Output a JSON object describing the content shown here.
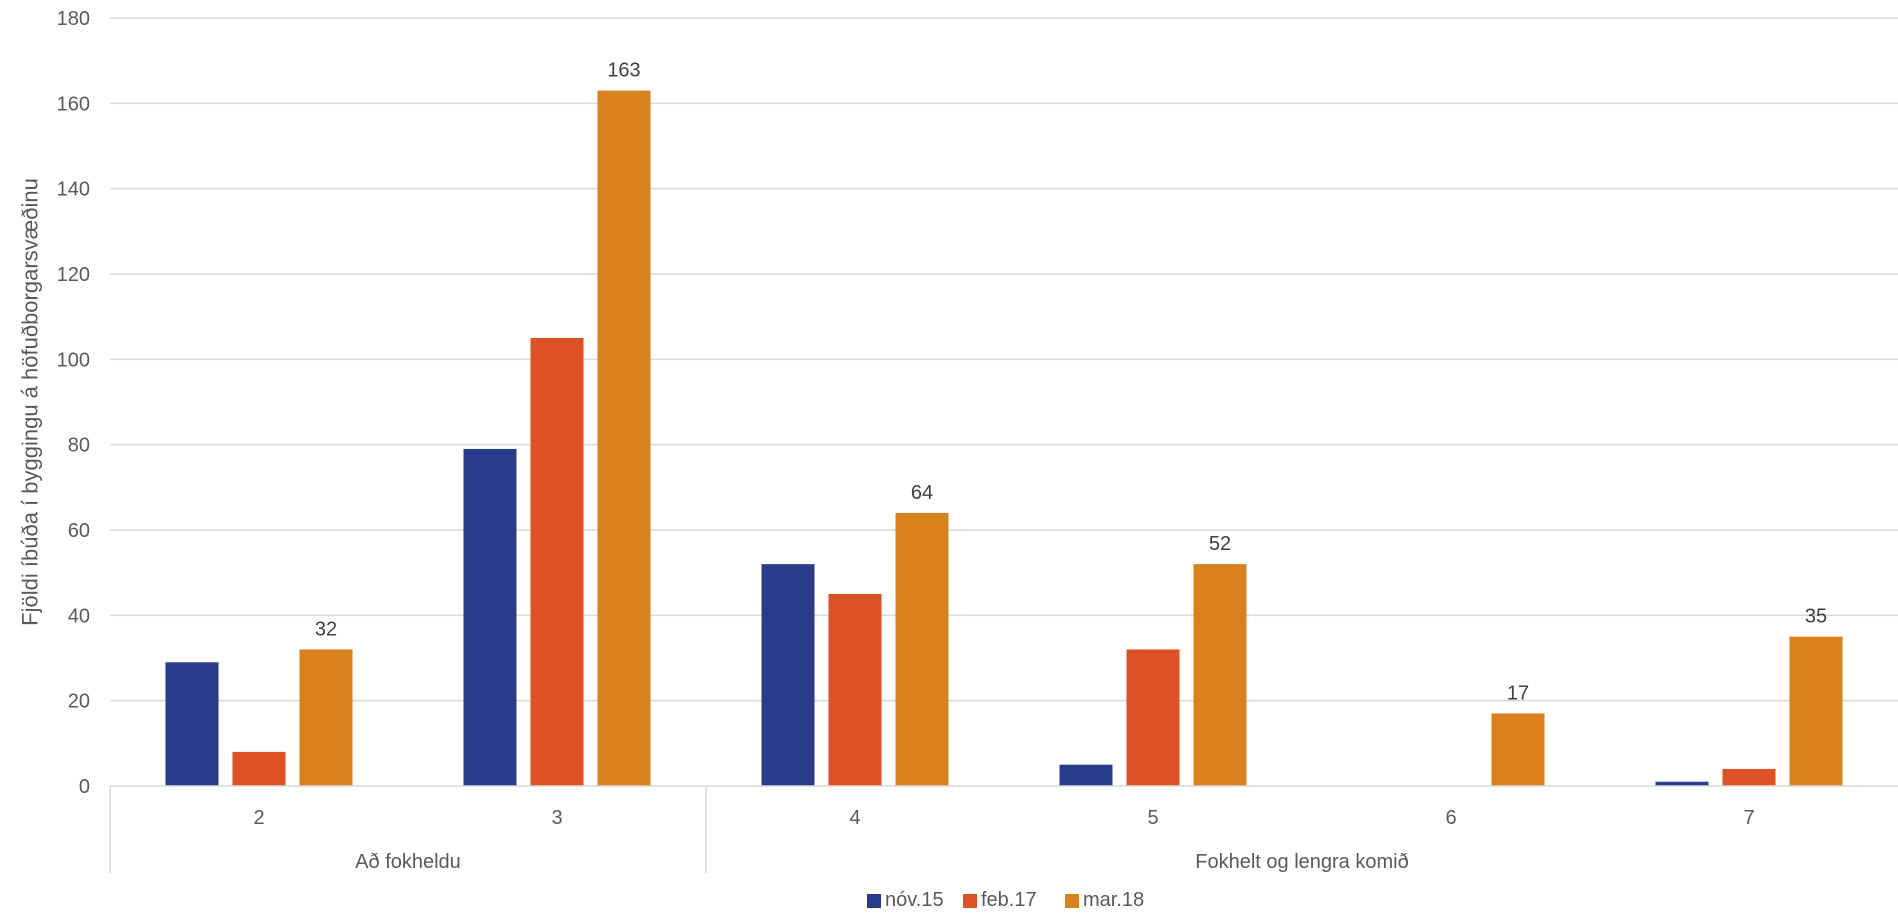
{
  "chart_data": {
    "type": "bar",
    "title": "",
    "ylabel": "Fjöldi íbúða í byggingu á höfuðborgarsvæðinu",
    "xlabel": "",
    "ylim": [
      0,
      180
    ],
    "yticks": [
      0,
      20,
      40,
      60,
      80,
      100,
      120,
      140,
      160,
      180
    ],
    "grid": true,
    "legend_position": "bottom",
    "categories": [
      "2",
      "3",
      "4",
      "5",
      "6",
      "7"
    ],
    "groups": [
      {
        "label": "Að fokheldu",
        "categories": [
          "2",
          "3"
        ]
      },
      {
        "label": "Fokhelt og lengra komið",
        "categories": [
          "4",
          "5",
          "6",
          "7"
        ]
      }
    ],
    "series": [
      {
        "name": "nóv.15",
        "color": "#283c89",
        "values": [
          29,
          79,
          52,
          5,
          0,
          1
        ]
      },
      {
        "name": "feb.17",
        "color": "#dc5226",
        "values": [
          8,
          105,
          45,
          32,
          0,
          4
        ]
      },
      {
        "name": "mar.18",
        "color": "#d8811d",
        "values": [
          32,
          163,
          64,
          52,
          17,
          35
        ],
        "data_labels": [
          "32",
          "163",
          "64",
          "52",
          "17",
          "35"
        ]
      }
    ]
  }
}
